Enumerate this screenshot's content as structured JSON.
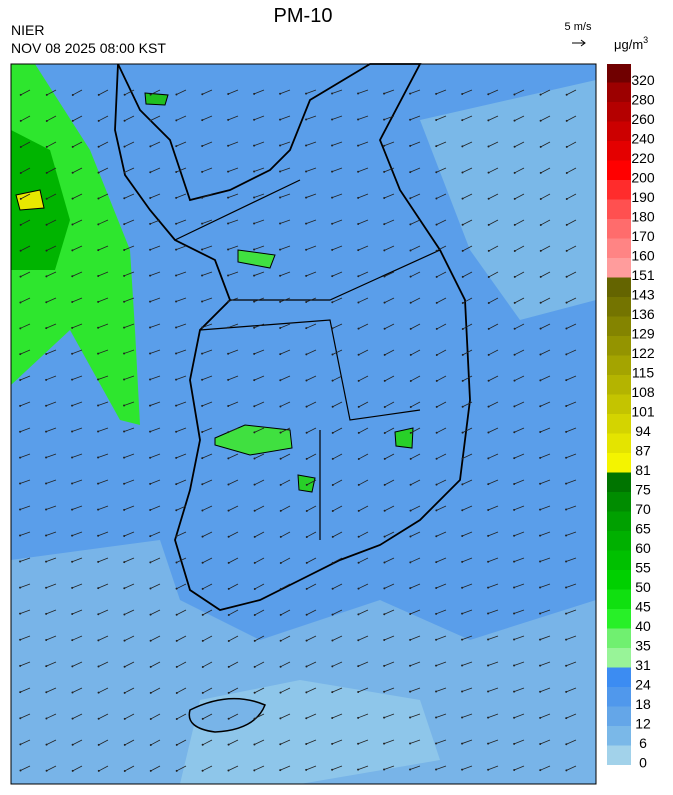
{
  "header": {
    "title": "PM-10",
    "agency": "NIER",
    "datetime": "NOV 08 2025 08:00 KST"
  },
  "wind_scale": {
    "label": "5 m/s"
  },
  "legend": {
    "unit": "μg/m",
    "unit_sup": "3",
    "levels": [
      0,
      6,
      12,
      18,
      24,
      31,
      35,
      40,
      45,
      50,
      55,
      60,
      65,
      70,
      75,
      81,
      87,
      94,
      101,
      108,
      115,
      122,
      129,
      136,
      143,
      151,
      160,
      170,
      180,
      190,
      200,
      220,
      240,
      260,
      280,
      320
    ],
    "colors": [
      "#a2d2ea",
      "#7ab8e8",
      "#64a6e8",
      "#5098ec",
      "#3c8cf2",
      "#98f498",
      "#70f070",
      "#28f028",
      "#10e010",
      "#00d000",
      "#00c000",
      "#00b000",
      "#00a000",
      "#008c00",
      "#007400",
      "#f4f400",
      "#e4e400",
      "#d4d400",
      "#c4c400",
      "#b4b400",
      "#a4a400",
      "#949400",
      "#848400",
      "#747400",
      "#646400",
      "#ff9c9c",
      "#ff8484",
      "#ff6c6c",
      "#ff5050",
      "#ff2c2c",
      "#ff0000",
      "#e40000",
      "#cc0000",
      "#b40000",
      "#9c0000",
      "#700000"
    ]
  }
}
